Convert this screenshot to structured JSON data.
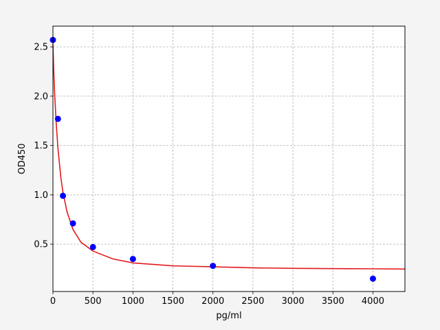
{
  "chart_data": {
    "type": "scatter",
    "title": "",
    "xlabel": "pg/ml",
    "ylabel": "OD450",
    "xlim": [
      0,
      4400
    ],
    "ylim": [
      0.02,
      2.71
    ],
    "xticks": [
      0,
      500,
      1000,
      1500,
      2000,
      2500,
      3000,
      3500,
      4000
    ],
    "yticks": [
      0.5,
      1.0,
      1.5,
      2.0,
      2.5
    ],
    "xtick_labels": [
      "0",
      "500",
      "1000",
      "1500",
      "2000",
      "2500",
      "3000",
      "3500",
      "4000"
    ],
    "ytick_labels": [
      "0.5",
      "1.0",
      "1.5",
      "2.0",
      "2.5"
    ],
    "grid": true,
    "series": [
      {
        "kind": "points",
        "color": "#0000ff",
        "x": [
          0,
          62.5,
          125,
          250,
          500,
          1000,
          2000,
          4000
        ],
        "y": [
          2.57,
          1.77,
          0.99,
          0.71,
          0.47,
          0.35,
          0.28,
          0.15
        ]
      },
      {
        "kind": "fit-curve",
        "color": "#e31a1c",
        "x": [
          0,
          10,
          20,
          40,
          62.5,
          100,
          125,
          175,
          250,
          350,
          500,
          750,
          1000,
          1500,
          2000,
          2500,
          3000,
          3500,
          4000,
          4400
        ],
        "y": [
          2.53,
          2.26,
          2.05,
          1.73,
          1.47,
          1.17,
          1.03,
          0.83,
          0.65,
          0.52,
          0.43,
          0.35,
          0.31,
          0.28,
          0.27,
          0.26,
          0.255,
          0.252,
          0.25,
          0.248
        ]
      }
    ]
  }
}
